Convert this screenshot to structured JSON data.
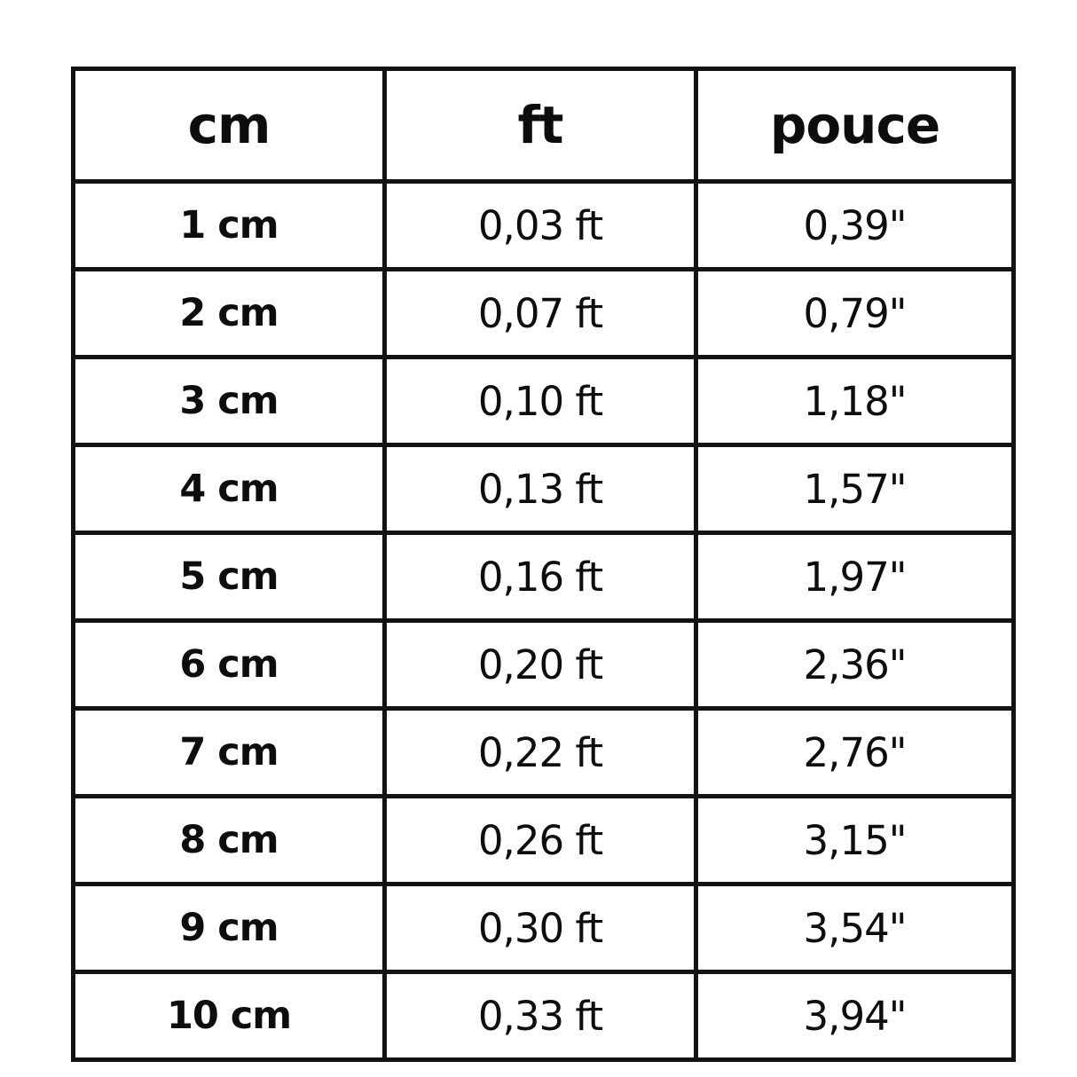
{
  "page": {
    "background_color": "#ffffff",
    "border_color": "#131313",
    "text_color": "#0d0d0d"
  },
  "chart_data": {
    "type": "table",
    "title": "",
    "columns": [
      "cm",
      "ft",
      "pouce"
    ],
    "rows": [
      [
        "1 cm",
        "0,03 ft",
        "0,39\""
      ],
      [
        "2 cm",
        "0,07 ft",
        "0,79\""
      ],
      [
        "3 cm",
        "0,10 ft",
        "1,18\""
      ],
      [
        "4 cm",
        "0,13 ft",
        "1,57\""
      ],
      [
        "5 cm",
        "0,16 ft",
        "1,97\""
      ],
      [
        "6 cm",
        "0,20 ft",
        "2,36\""
      ],
      [
        "7 cm",
        "0,22 ft",
        "2,76\""
      ],
      [
        "8 cm",
        "0,26 ft",
        "3,15\""
      ],
      [
        "9 cm",
        "0,30 ft",
        "3,54\""
      ],
      [
        "10 cm",
        "0,33 ft",
        "3,94\""
      ]
    ],
    "series": [
      {
        "name": "cm",
        "values": [
          1,
          2,
          3,
          4,
          5,
          6,
          7,
          8,
          9,
          10
        ]
      },
      {
        "name": "ft",
        "values": [
          0.03,
          0.07,
          0.1,
          0.13,
          0.16,
          0.2,
          0.22,
          0.26,
          0.3,
          0.33
        ]
      },
      {
        "name": "pouce",
        "values": [
          0.39,
          0.79,
          1.18,
          1.57,
          1.97,
          2.36,
          2.76,
          3.15,
          3.54,
          3.94
        ]
      }
    ],
    "layout": {
      "grid": "on",
      "header_row_bold": true,
      "first_column_bold": true,
      "decimal_separator": ","
    }
  }
}
